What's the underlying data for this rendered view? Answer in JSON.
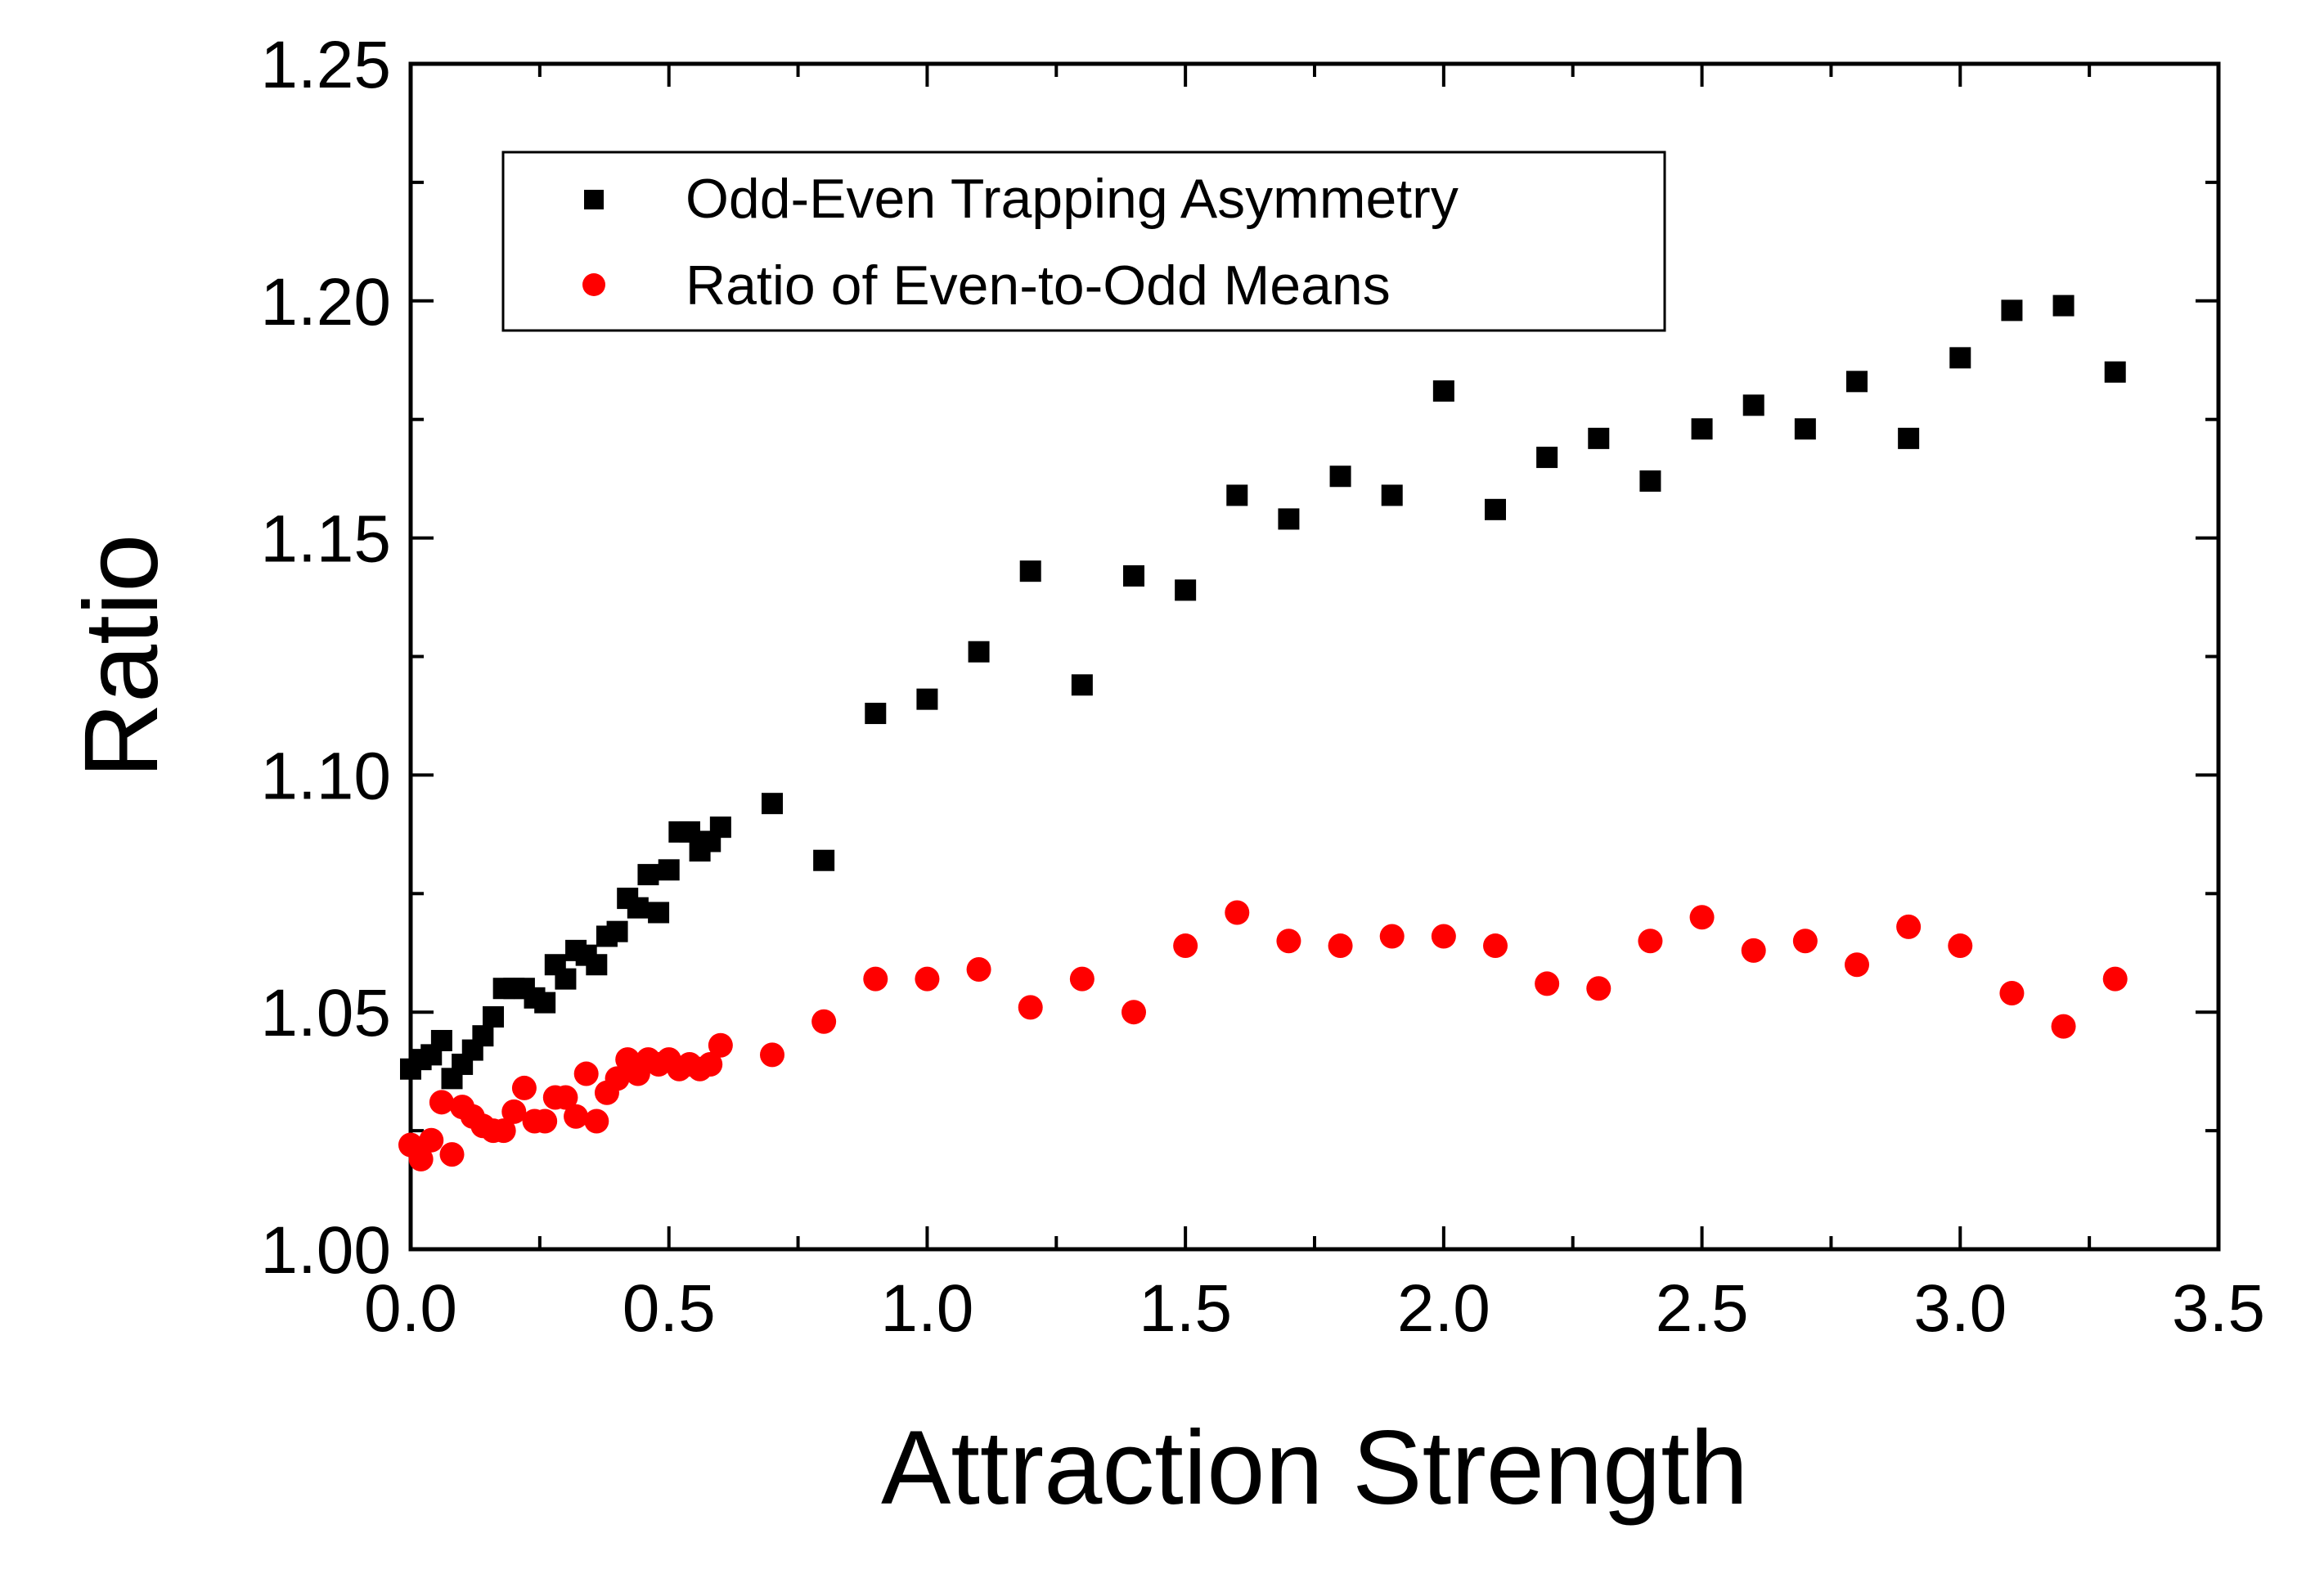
{
  "chart_data": {
    "type": "scatter",
    "xlabel": "Attraction Strength",
    "ylabel": "Ratio",
    "xlim": [
      0.0,
      3.5
    ],
    "ylim": [
      1.0,
      1.25
    ],
    "xticks": [
      "0.0",
      "0.5",
      "1.0",
      "1.5",
      "2.0",
      "2.5",
      "3.0",
      "3.5"
    ],
    "yticks": [
      "1.00",
      "1.05",
      "1.10",
      "1.15",
      "1.20",
      "1.25"
    ],
    "grid": false,
    "legend_position": "top-left",
    "series": [
      {
        "name": "Odd-Even Trapping Asymmetry",
        "marker": "square",
        "color": "#000000",
        "x": [
          0.0,
          0.02,
          0.04,
          0.06,
          0.08,
          0.1,
          0.12,
          0.14,
          0.16,
          0.18,
          0.2,
          0.22,
          0.24,
          0.26,
          0.28,
          0.3,
          0.32,
          0.34,
          0.36,
          0.38,
          0.4,
          0.42,
          0.44,
          0.46,
          0.48,
          0.5,
          0.52,
          0.54,
          0.56,
          0.58,
          0.6,
          0.7,
          0.8,
          0.9,
          1.0,
          1.1,
          1.2,
          1.3,
          1.4,
          1.5,
          1.6,
          1.7,
          1.8,
          1.9,
          2.0,
          2.1,
          2.2,
          2.3,
          2.4,
          2.5,
          2.6,
          2.7,
          2.8,
          2.9,
          3.0,
          3.1,
          3.2,
          3.3
        ],
        "y": [
          1.038,
          1.04,
          1.041,
          1.044,
          1.036,
          1.039,
          1.042,
          1.045,
          1.049,
          1.055,
          1.055,
          1.055,
          1.053,
          1.052,
          1.06,
          1.057,
          1.063,
          1.062,
          1.06,
          1.066,
          1.067,
          1.074,
          1.072,
          1.079,
          1.071,
          1.08,
          1.088,
          1.088,
          1.084,
          1.086,
          1.089,
          1.094,
          1.082,
          1.113,
          1.116,
          1.126,
          1.143,
          1.119,
          1.142,
          1.139,
          1.159,
          1.154,
          1.163,
          1.159,
          1.181,
          1.156,
          1.167,
          1.171,
          1.162,
          1.173,
          1.178,
          1.173,
          1.183,
          1.171,
          1.188,
          1.198,
          1.199,
          1.185
        ]
      },
      {
        "name": "Ratio of Even-to-Odd Means",
        "marker": "circle",
        "color": "#ff0000",
        "x": [
          0.0,
          0.02,
          0.04,
          0.06,
          0.08,
          0.1,
          0.12,
          0.14,
          0.16,
          0.18,
          0.2,
          0.22,
          0.24,
          0.26,
          0.28,
          0.3,
          0.32,
          0.34,
          0.36,
          0.38,
          0.4,
          0.42,
          0.44,
          0.46,
          0.48,
          0.5,
          0.52,
          0.54,
          0.56,
          0.58,
          0.6,
          0.7,
          0.8,
          0.9,
          1.0,
          1.1,
          1.2,
          1.3,
          1.4,
          1.5,
          1.6,
          1.7,
          1.8,
          1.9,
          2.0,
          2.1,
          2.2,
          2.3,
          2.4,
          2.5,
          2.6,
          2.7,
          2.8,
          2.9,
          3.0,
          3.1,
          3.2,
          3.3
        ],
        "y": [
          1.022,
          1.019,
          1.023,
          1.031,
          1.02,
          1.03,
          1.028,
          1.026,
          1.025,
          1.025,
          1.029,
          1.034,
          1.027,
          1.027,
          1.032,
          1.032,
          1.028,
          1.037,
          1.027,
          1.033,
          1.036,
          1.04,
          1.037,
          1.04,
          1.039,
          1.04,
          1.038,
          1.039,
          1.038,
          1.039,
          1.043,
          1.041,
          1.048,
          1.057,
          1.057,
          1.059,
          1.051,
          1.057,
          1.05,
          1.064,
          1.071,
          1.065,
          1.064,
          1.066,
          1.066,
          1.064,
          1.056,
          1.055,
          1.065,
          1.07,
          1.063,
          1.065,
          1.06,
          1.068,
          1.064,
          1.054,
          1.047,
          1.057
        ]
      }
    ]
  }
}
